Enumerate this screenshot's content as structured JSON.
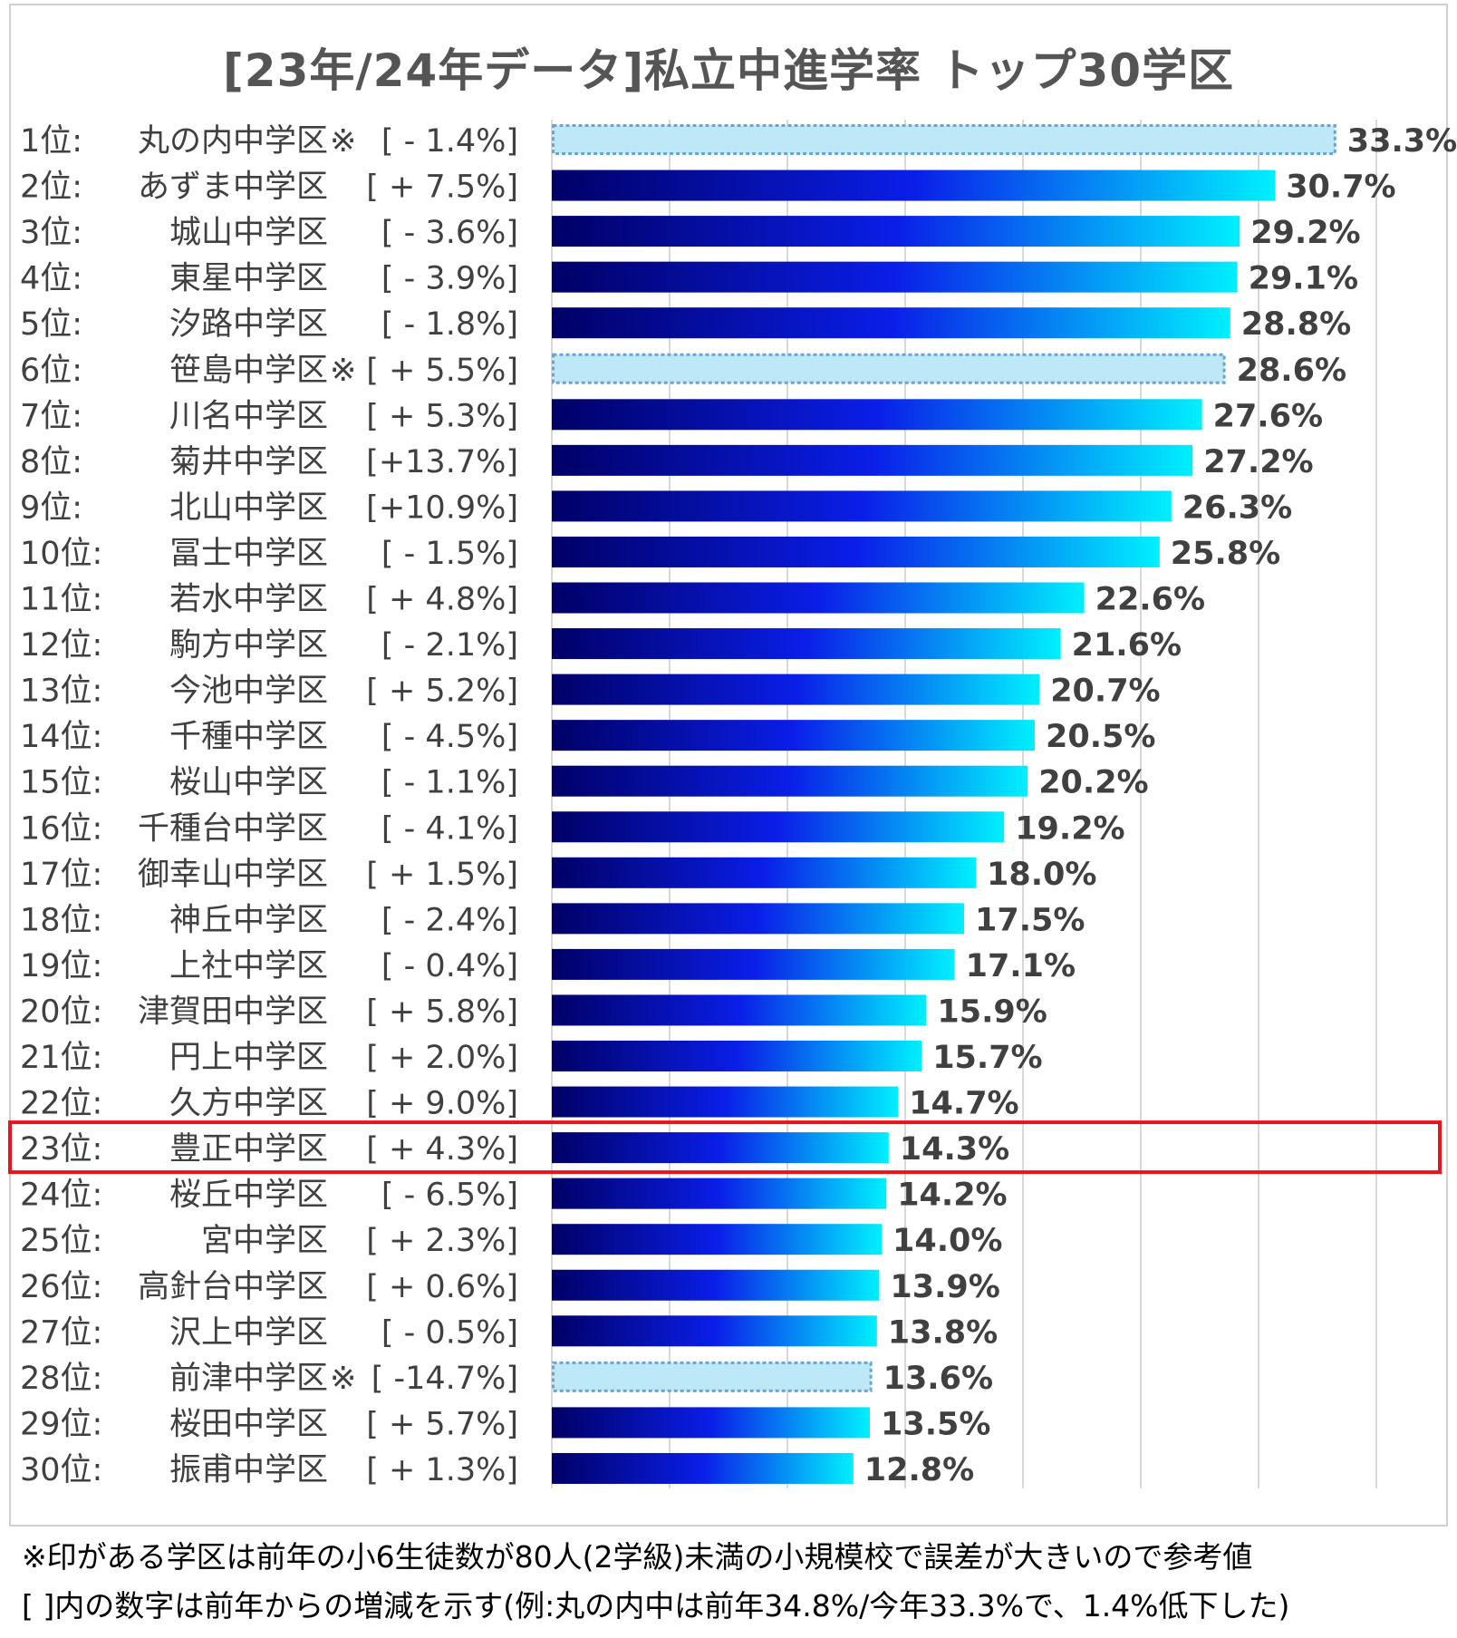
{
  "chart_data": {
    "type": "bar",
    "orientation": "horizontal",
    "title": "[23年/24年データ]私立中進学率 トップ30学区",
    "xlim": [
      0,
      35
    ],
    "grid": true,
    "highlight_rank": "23位:",
    "colors": {
      "gradient_start": "#000066",
      "gradient_mid": "#0a1ee8",
      "gradient_end": "#00f0ff",
      "reference_fill": "#bde8f7",
      "reference_border": "#6aa3d8",
      "highlight_box": "#e8141b",
      "gridline": "#d9d9d9",
      "label_text": "#404040"
    },
    "rows": [
      {
        "rank": "1位:",
        "name": "丸の内中学区",
        "mark": "※",
        "change": "[ - 1.4%]",
        "value": 33.3,
        "value_label": "33.3%",
        "reference": true
      },
      {
        "rank": "2位:",
        "name": "あずま中学区",
        "mark": "",
        "change": "[ + 7.5%]",
        "value": 30.7,
        "value_label": "30.7%",
        "reference": false
      },
      {
        "rank": "3位:",
        "name": "城山中学区",
        "mark": "",
        "change": "[ - 3.6%]",
        "value": 29.2,
        "value_label": "29.2%",
        "reference": false
      },
      {
        "rank": "4位:",
        "name": "東星中学区",
        "mark": "",
        "change": "[ - 3.9%]",
        "value": 29.1,
        "value_label": "29.1%",
        "reference": false
      },
      {
        "rank": "5位:",
        "name": "汐路中学区",
        "mark": "",
        "change": "[ - 1.8%]",
        "value": 28.8,
        "value_label": "28.8%",
        "reference": false
      },
      {
        "rank": "6位:",
        "name": "笹島中学区",
        "mark": "※",
        "change": "[ + 5.5%]",
        "value": 28.6,
        "value_label": "28.6%",
        "reference": true
      },
      {
        "rank": "7位:",
        "name": "川名中学区",
        "mark": "",
        "change": "[ + 5.3%]",
        "value": 27.6,
        "value_label": "27.6%",
        "reference": false
      },
      {
        "rank": "8位:",
        "name": "菊井中学区",
        "mark": "",
        "change": "[+13.7%]",
        "value": 27.2,
        "value_label": "27.2%",
        "reference": false
      },
      {
        "rank": "9位:",
        "name": "北山中学区",
        "mark": "",
        "change": "[+10.9%]",
        "value": 26.3,
        "value_label": "26.3%",
        "reference": false
      },
      {
        "rank": "10位:",
        "name": "冨士中学区",
        "mark": "",
        "change": "[ - 1.5%]",
        "value": 25.8,
        "value_label": "25.8%",
        "reference": false
      },
      {
        "rank": "11位:",
        "name": "若水中学区",
        "mark": "",
        "change": "[ + 4.8%]",
        "value": 22.6,
        "value_label": "22.6%",
        "reference": false
      },
      {
        "rank": "12位:",
        "name": "駒方中学区",
        "mark": "",
        "change": "[ - 2.1%]",
        "value": 21.6,
        "value_label": "21.6%",
        "reference": false
      },
      {
        "rank": "13位:",
        "name": "今池中学区",
        "mark": "",
        "change": "[ + 5.2%]",
        "value": 20.7,
        "value_label": "20.7%",
        "reference": false
      },
      {
        "rank": "14位:",
        "name": "千種中学区",
        "mark": "",
        "change": "[ - 4.5%]",
        "value": 20.5,
        "value_label": "20.5%",
        "reference": false
      },
      {
        "rank": "15位:",
        "name": "桜山中学区",
        "mark": "",
        "change": "[ - 1.1%]",
        "value": 20.2,
        "value_label": "20.2%",
        "reference": false
      },
      {
        "rank": "16位:",
        "name": "千種台中学区",
        "mark": "",
        "change": "[ - 4.1%]",
        "value": 19.2,
        "value_label": "19.2%",
        "reference": false
      },
      {
        "rank": "17位:",
        "name": "御幸山中学区",
        "mark": "",
        "change": "[ + 1.5%]",
        "value": 18.0,
        "value_label": "18.0%",
        "reference": false
      },
      {
        "rank": "18位:",
        "name": "神丘中学区",
        "mark": "",
        "change": "[ - 2.4%]",
        "value": 17.5,
        "value_label": "17.5%",
        "reference": false
      },
      {
        "rank": "19位:",
        "name": "上社中学区",
        "mark": "",
        "change": "[ - 0.4%]",
        "value": 17.1,
        "value_label": "17.1%",
        "reference": false
      },
      {
        "rank": "20位:",
        "name": "津賀田中学区",
        "mark": "",
        "change": "[ + 5.8%]",
        "value": 15.9,
        "value_label": "15.9%",
        "reference": false
      },
      {
        "rank": "21位:",
        "name": "円上中学区",
        "mark": "",
        "change": "[ + 2.0%]",
        "value": 15.7,
        "value_label": "15.7%",
        "reference": false
      },
      {
        "rank": "22位:",
        "name": "久方中学区",
        "mark": "",
        "change": "[ + 9.0%]",
        "value": 14.7,
        "value_label": "14.7%",
        "reference": false
      },
      {
        "rank": "23位:",
        "name": "豊正中学区",
        "mark": "",
        "change": "[ + 4.3%]",
        "value": 14.3,
        "value_label": "14.3%",
        "reference": false
      },
      {
        "rank": "24位:",
        "name": "桜丘中学区",
        "mark": "",
        "change": "[ - 6.5%]",
        "value": 14.2,
        "value_label": "14.2%",
        "reference": false
      },
      {
        "rank": "25位:",
        "name": "宮中学区",
        "mark": "",
        "change": "[ + 2.3%]",
        "value": 14.0,
        "value_label": "14.0%",
        "reference": false
      },
      {
        "rank": "26位:",
        "name": "高針台中学区",
        "mark": "",
        "change": "[ + 0.6%]",
        "value": 13.9,
        "value_label": "13.9%",
        "reference": false
      },
      {
        "rank": "27位:",
        "name": "沢上中学区",
        "mark": "",
        "change": "[ - 0.5%]",
        "value": 13.8,
        "value_label": "13.8%",
        "reference": false
      },
      {
        "rank": "28位:",
        "name": "前津中学区",
        "mark": "※",
        "change": "[ -14.7%]",
        "value": 13.6,
        "value_label": "13.6%",
        "reference": true
      },
      {
        "rank": "29位:",
        "name": "桜田中学区",
        "mark": "",
        "change": "[ + 5.7%]",
        "value": 13.5,
        "value_label": "13.5%",
        "reference": false
      },
      {
        "rank": "30位:",
        "name": "振甫中学区",
        "mark": "",
        "change": "[ + 1.3%]",
        "value": 12.8,
        "value_label": "12.8%",
        "reference": false
      }
    ]
  },
  "notes": {
    "line1": "※印がある学区は前年の小6生徒数が80人(2学級)未満の小規模校で誤差が大きいので参考値",
    "line2": "[ ]内の数字は前年からの増減を示す(例:丸の内中は前年34.8%/今年33.3%で、1.4%低下した)"
  }
}
